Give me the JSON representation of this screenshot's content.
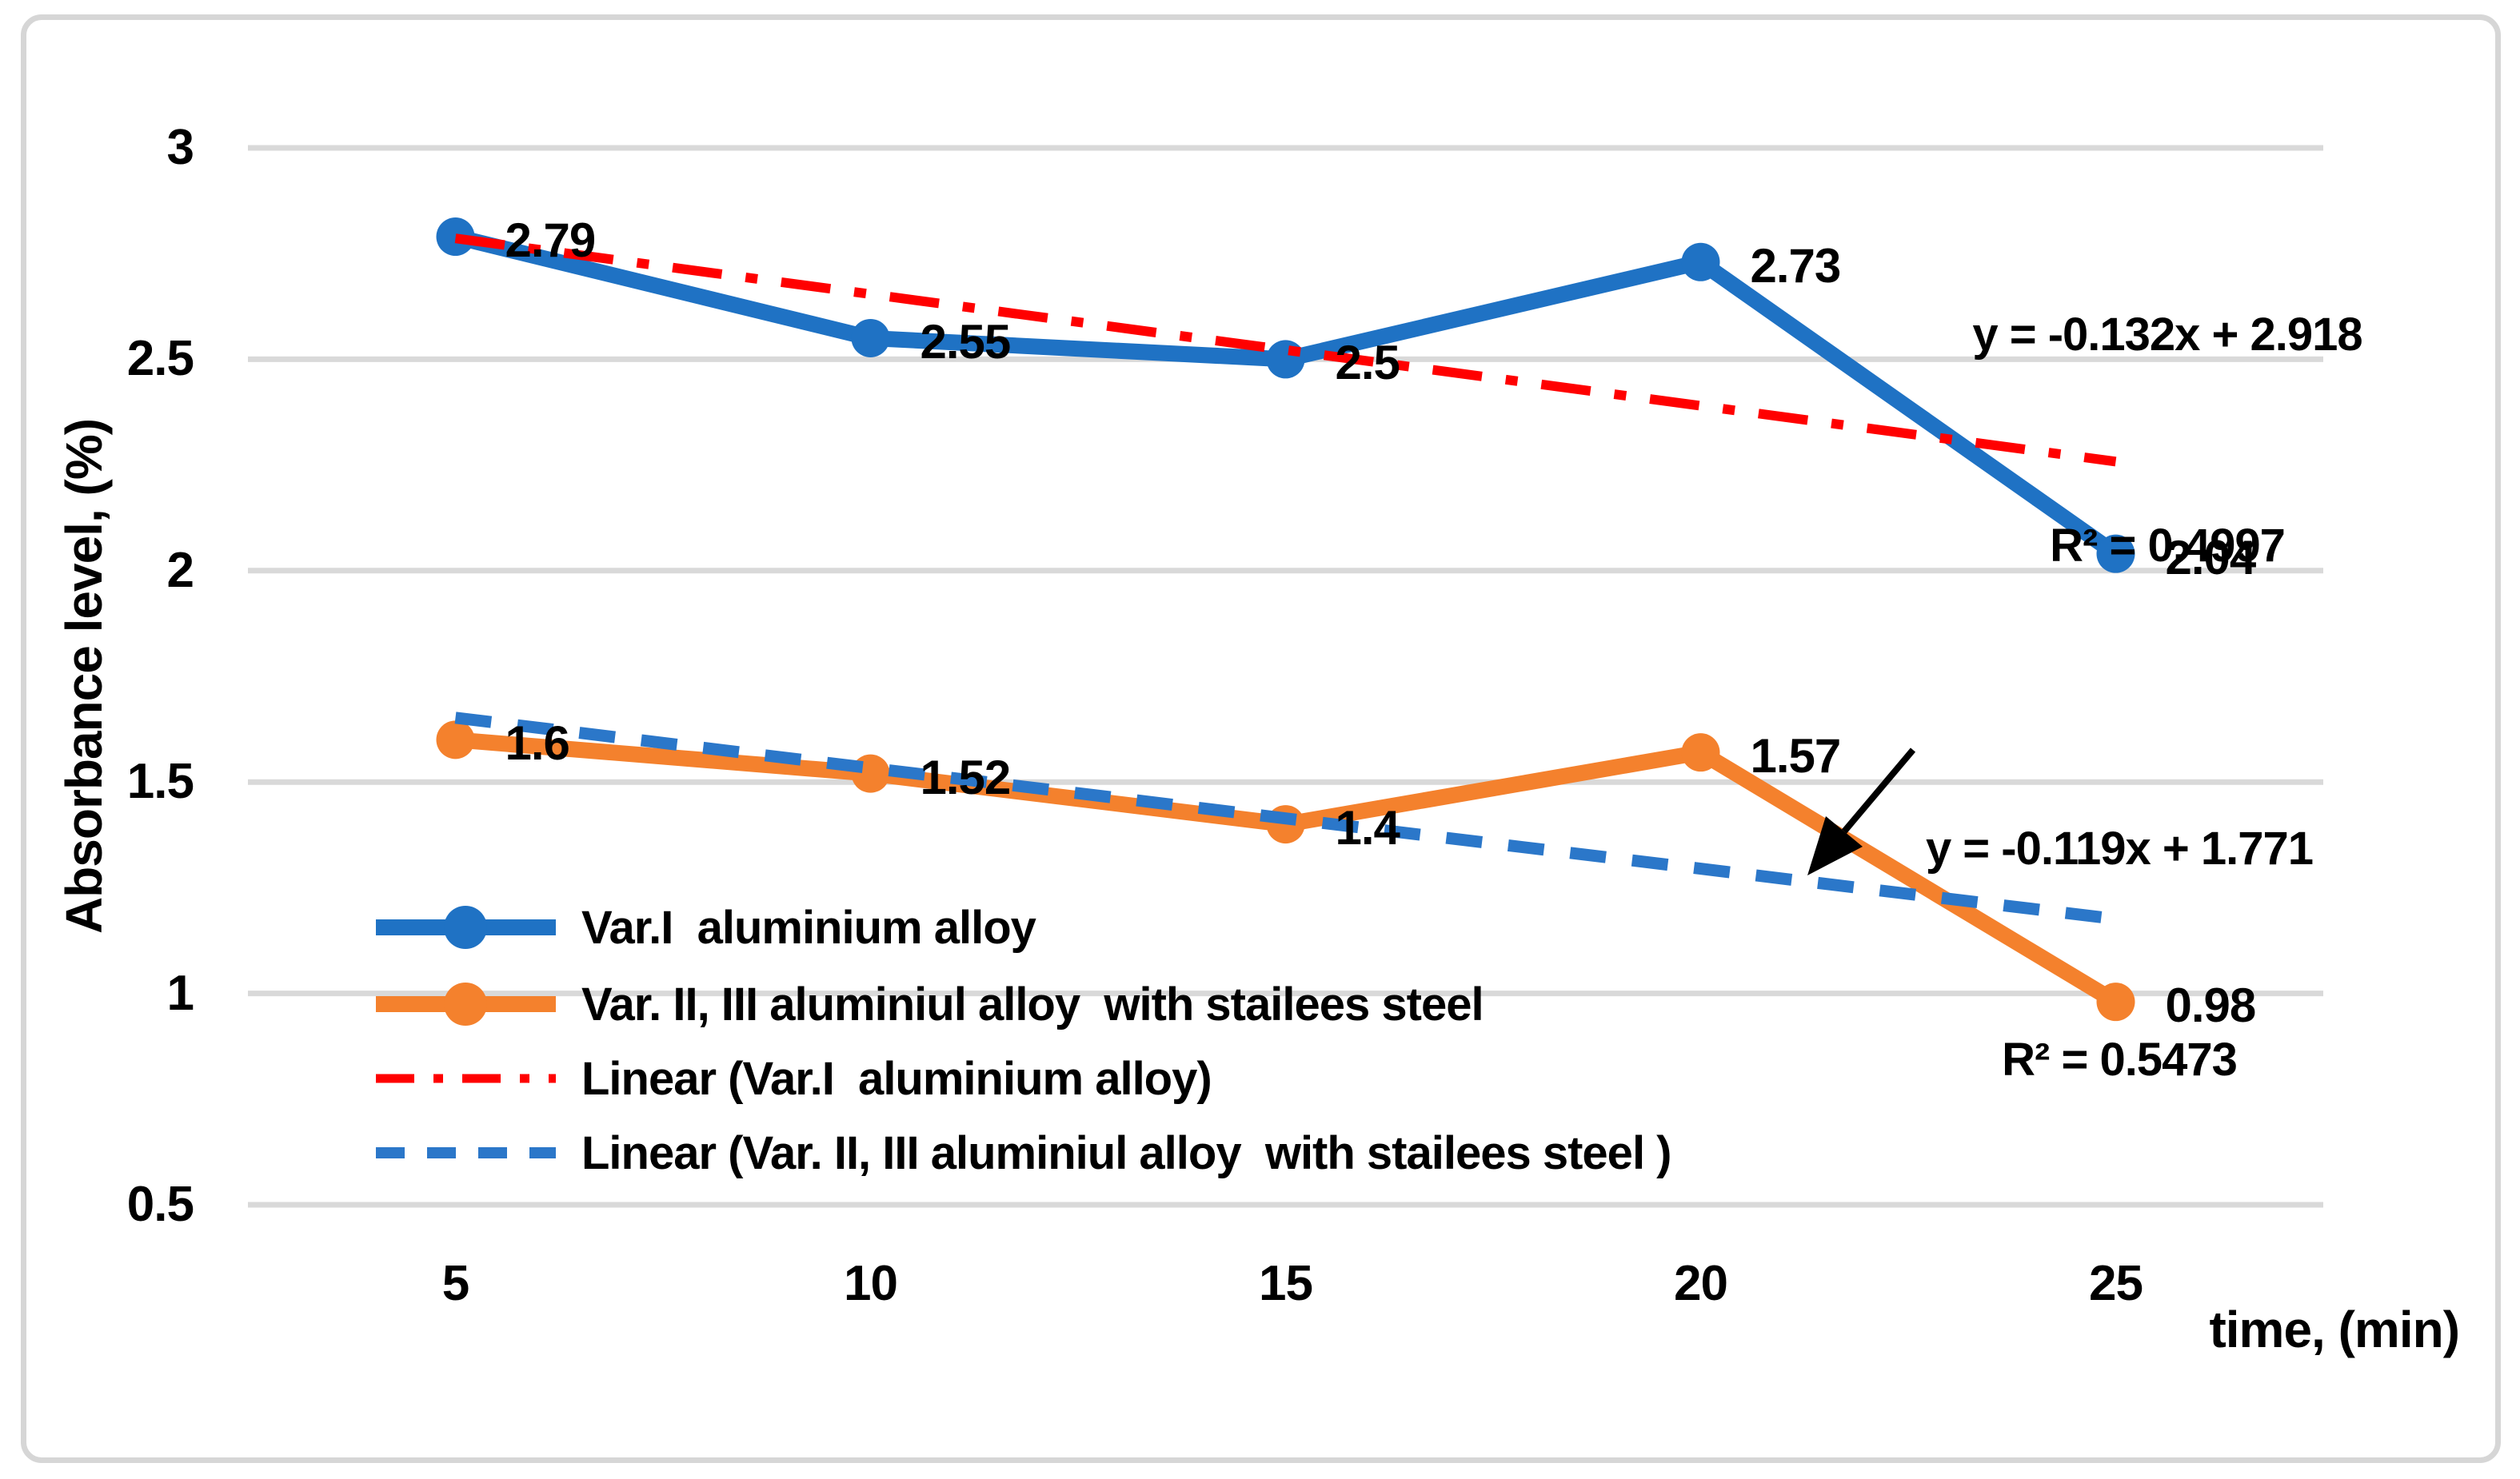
{
  "colors": {
    "background": "#ffffff",
    "border": "#d6d6d6",
    "gridline": "#d9d9d9",
    "text": "#000000",
    "annotation_arrow": "#000000"
  },
  "chart_data": {
    "type": "line",
    "xlabel": "time, (min)",
    "ylabel": "Absorbance level, (%)",
    "x": [
      5,
      10,
      15,
      20,
      25
    ],
    "x_tick_labels": [
      "5",
      "10",
      "15",
      "20",
      "25"
    ],
    "ylim": [
      0.5,
      3
    ],
    "yticks": [
      3,
      2.5,
      2,
      1.5,
      1,
      0.5
    ],
    "ytick_labels": [
      "3",
      "2.5",
      "2",
      "1.5",
      "1",
      "0.5"
    ],
    "grid": true,
    "legend_position": "inside bottom-left",
    "series": [
      {
        "name": "Var.I  aluminium alloy",
        "values": [
          2.79,
          2.55,
          2.5,
          2.73,
          2.04
        ],
        "data_labels": [
          "2.79",
          "2.55",
          "2.5",
          "2.73",
          "2.04"
        ],
        "color": "#1f72c4",
        "marker": "circle",
        "line_style": "solid"
      },
      {
        "name": "Var. II, III aluminiul alloy  with stailees steel",
        "values": [
          1.6,
          1.52,
          1.4,
          1.57,
          0.98
        ],
        "data_labels": [
          "1.6",
          "1.52",
          "1.4",
          "1.57",
          "0.98"
        ],
        "color": "#f4812d",
        "marker": "circle",
        "line_style": "solid"
      }
    ],
    "trendlines": [
      {
        "name": "Linear (Var.I  aluminium alloy)",
        "slope": -0.132,
        "intercept": 2.918,
        "color": "#ff0000",
        "line_style": "dash-dot",
        "equation": "y = -0.132x + 2.918",
        "r2": "R² = 0.4997"
      },
      {
        "name": "Linear (Var. II, III aluminiul alloy  with stailees steel )",
        "slope": -0.119,
        "intercept": 1.771,
        "color": "#2b77c9",
        "line_style": "dashed",
        "equation": "y = -0.119x + 1.771",
        "r2": "R² = 0.5473"
      }
    ],
    "annotations": [
      {
        "kind": "arrow",
        "points_to": "Linear (Var. II, III aluminiul alloy  with stailees steel ) trendline"
      }
    ]
  }
}
